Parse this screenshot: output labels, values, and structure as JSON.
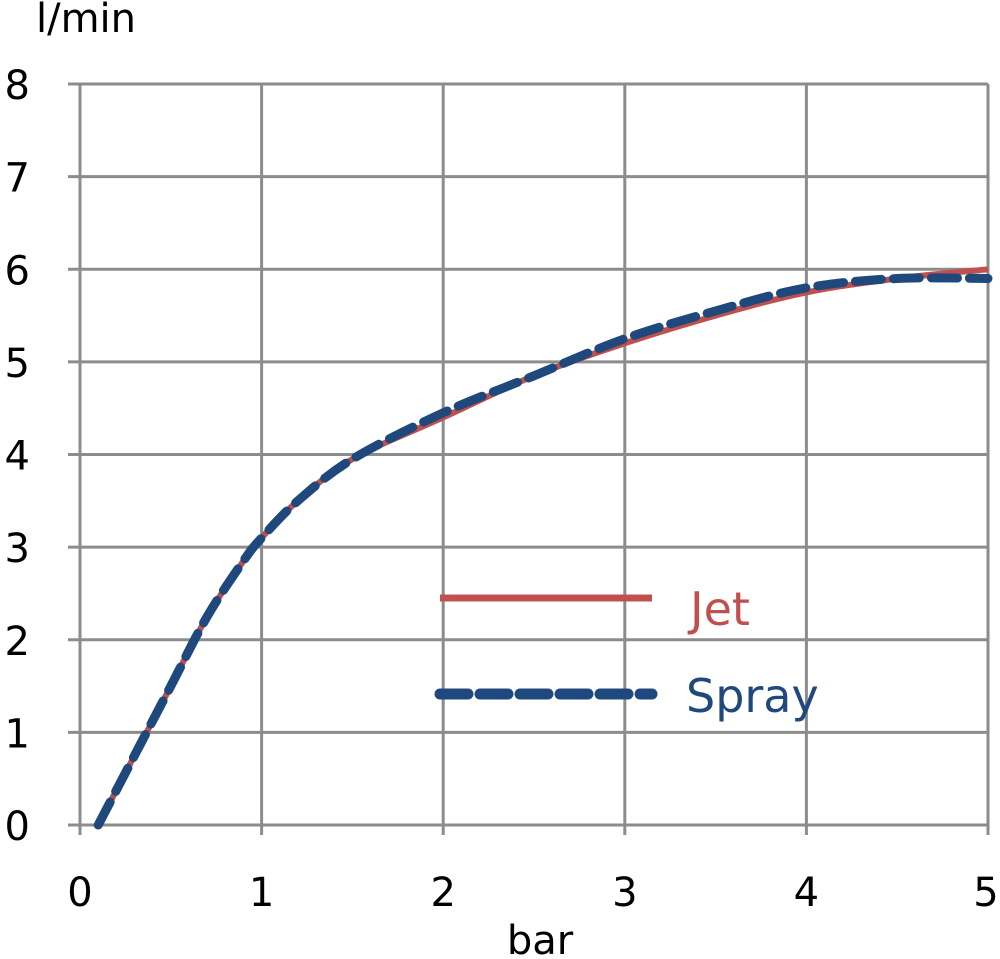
{
  "chart_data": {
    "type": "line",
    "title": "",
    "xlabel": "bar",
    "ylabel": "l/min",
    "xlim": [
      0,
      5
    ],
    "ylim": [
      0,
      8
    ],
    "x_ticks": [
      "0",
      "1",
      "2",
      "3",
      "4",
      "5"
    ],
    "y_ticks": [
      "0",
      "1",
      "2",
      "3",
      "4",
      "5",
      "6",
      "7",
      "8"
    ],
    "grid": true,
    "legend_position": "center-right",
    "series": [
      {
        "name": "Jet",
        "color": "#c0504d",
        "style": "solid",
        "x": [
          0.1,
          0.3,
          0.5,
          0.7,
          0.9,
          1.0,
          1.2,
          1.5,
          2.0,
          2.5,
          3.0,
          3.5,
          4.0,
          4.5,
          5.0
        ],
        "y": [
          0.0,
          0.75,
          1.5,
          2.25,
          2.85,
          3.1,
          3.5,
          3.95,
          4.4,
          4.85,
          5.2,
          5.5,
          5.75,
          5.9,
          6.0
        ]
      },
      {
        "name": "Spray",
        "color": "#1f497d",
        "style": "dashed",
        "x": [
          0.1,
          0.3,
          0.5,
          0.7,
          0.9,
          1.0,
          1.2,
          1.5,
          2.0,
          2.5,
          3.0,
          3.5,
          4.0,
          4.5,
          5.0
        ],
        "y": [
          0.0,
          0.75,
          1.5,
          2.25,
          2.85,
          3.1,
          3.5,
          3.95,
          4.45,
          4.85,
          5.25,
          5.55,
          5.8,
          5.9,
          5.9
        ]
      }
    ]
  }
}
